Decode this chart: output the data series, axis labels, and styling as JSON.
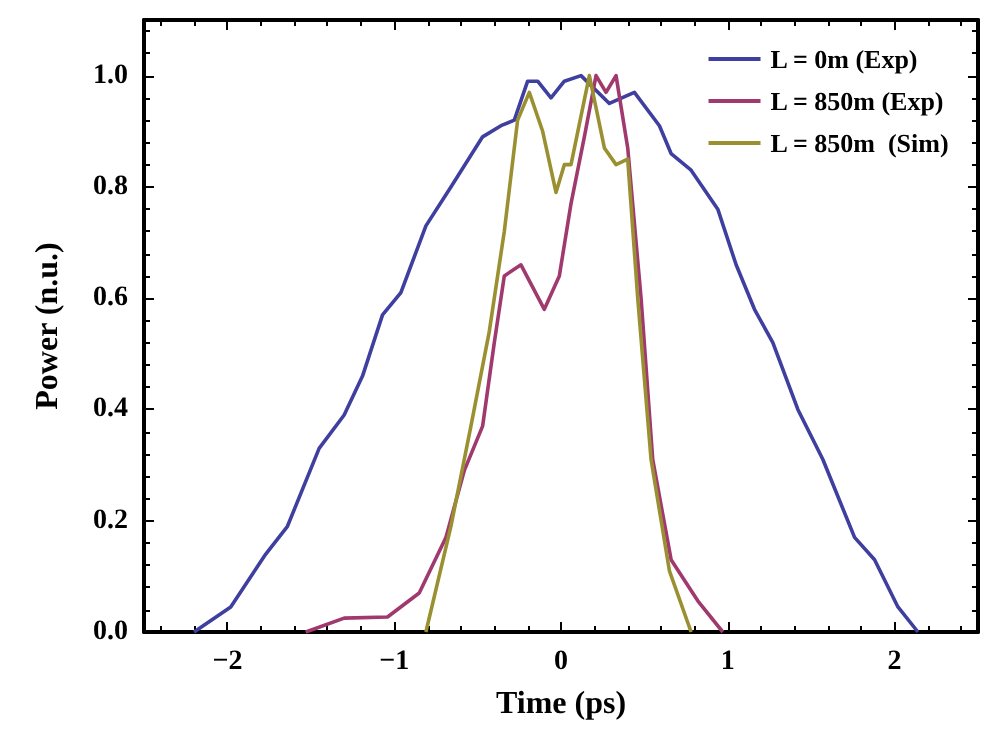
{
  "chart_data": {
    "type": "line",
    "xlabel": "Time (ps)",
    "ylabel": "Power (n.u.)",
    "xlim": [
      -2.5,
      2.5
    ],
    "ylim": [
      0,
      1.1
    ],
    "xticks": [
      {
        "value": -2,
        "label": "−2"
      },
      {
        "value": -1,
        "label": "−1"
      },
      0,
      1,
      2
    ],
    "yticks": [
      {
        "value": 0,
        "label": "0.0"
      },
      {
        "value": 0.2,
        "label": "0.2"
      },
      {
        "value": 0.4,
        "label": "0.4"
      },
      {
        "value": 0.6,
        "label": "0.6"
      },
      {
        "value": 0.8,
        "label": "0.8"
      },
      {
        "value": 1,
        "label": "1.0"
      }
    ],
    "grid": false,
    "legend": "top right",
    "marker": "none",
    "line_style": "solid",
    "series": [
      {
        "name": "L = 0m (Exp)",
        "color": "#3f3f9f",
        "x": [
          -2.2,
          -1.98,
          -1.77,
          -1.64,
          -1.45,
          -1.3,
          -1.19,
          -1.07,
          -0.96,
          -0.81,
          -0.66,
          -0.47,
          -0.36,
          -0.28,
          -0.2,
          -0.14,
          -0.06,
          0.02,
          0.12,
          0.29,
          0.44,
          0.59,
          0.66,
          0.78,
          0.94,
          1.05,
          1.16,
          1.27,
          1.42,
          1.57,
          1.76,
          1.88,
          2.02,
          2.14
        ],
        "values": [
          0,
          0.045,
          0.14,
          0.19,
          0.33,
          0.39,
          0.46,
          0.57,
          0.61,
          0.73,
          0.8,
          0.89,
          0.91,
          0.92,
          0.99,
          0.99,
          0.96,
          0.99,
          1.0,
          0.95,
          0.97,
          0.91,
          0.86,
          0.83,
          0.76,
          0.66,
          0.58,
          0.52,
          0.4,
          0.31,
          0.17,
          0.13,
          0.045,
          0
        ]
      },
      {
        "name": "L = 850m (Exp)",
        "color": "#a03a6e",
        "x": [
          -1.53,
          -1.3,
          -1.04,
          -0.85,
          -0.69,
          -0.58,
          -0.47,
          -0.4,
          -0.34,
          -0.24,
          -0.1,
          -0.01,
          0.06,
          0.14,
          0.21,
          0.27,
          0.33,
          0.4,
          0.48,
          0.55,
          0.66,
          0.82,
          0.97
        ],
        "values": [
          0,
          0.025,
          0.027,
          0.07,
          0.17,
          0.29,
          0.37,
          0.52,
          0.64,
          0.66,
          0.58,
          0.64,
          0.77,
          0.89,
          1.0,
          0.97,
          1.0,
          0.87,
          0.6,
          0.31,
          0.13,
          0.056,
          0
        ]
      },
      {
        "name": "L = 850m  (Sim)",
        "color": "#9a9032",
        "x": [
          -0.81,
          -0.66,
          -0.54,
          -0.43,
          -0.34,
          -0.26,
          -0.19,
          -0.11,
          -0.03,
          0.02,
          0.06,
          0.17,
          0.26,
          0.33,
          0.4,
          0.46,
          0.54,
          0.65,
          0.78
        ],
        "values": [
          0,
          0.19,
          0.37,
          0.54,
          0.72,
          0.92,
          0.97,
          0.9,
          0.79,
          0.84,
          0.84,
          1.0,
          0.87,
          0.84,
          0.85,
          0.6,
          0.31,
          0.11,
          0
        ]
      }
    ]
  }
}
